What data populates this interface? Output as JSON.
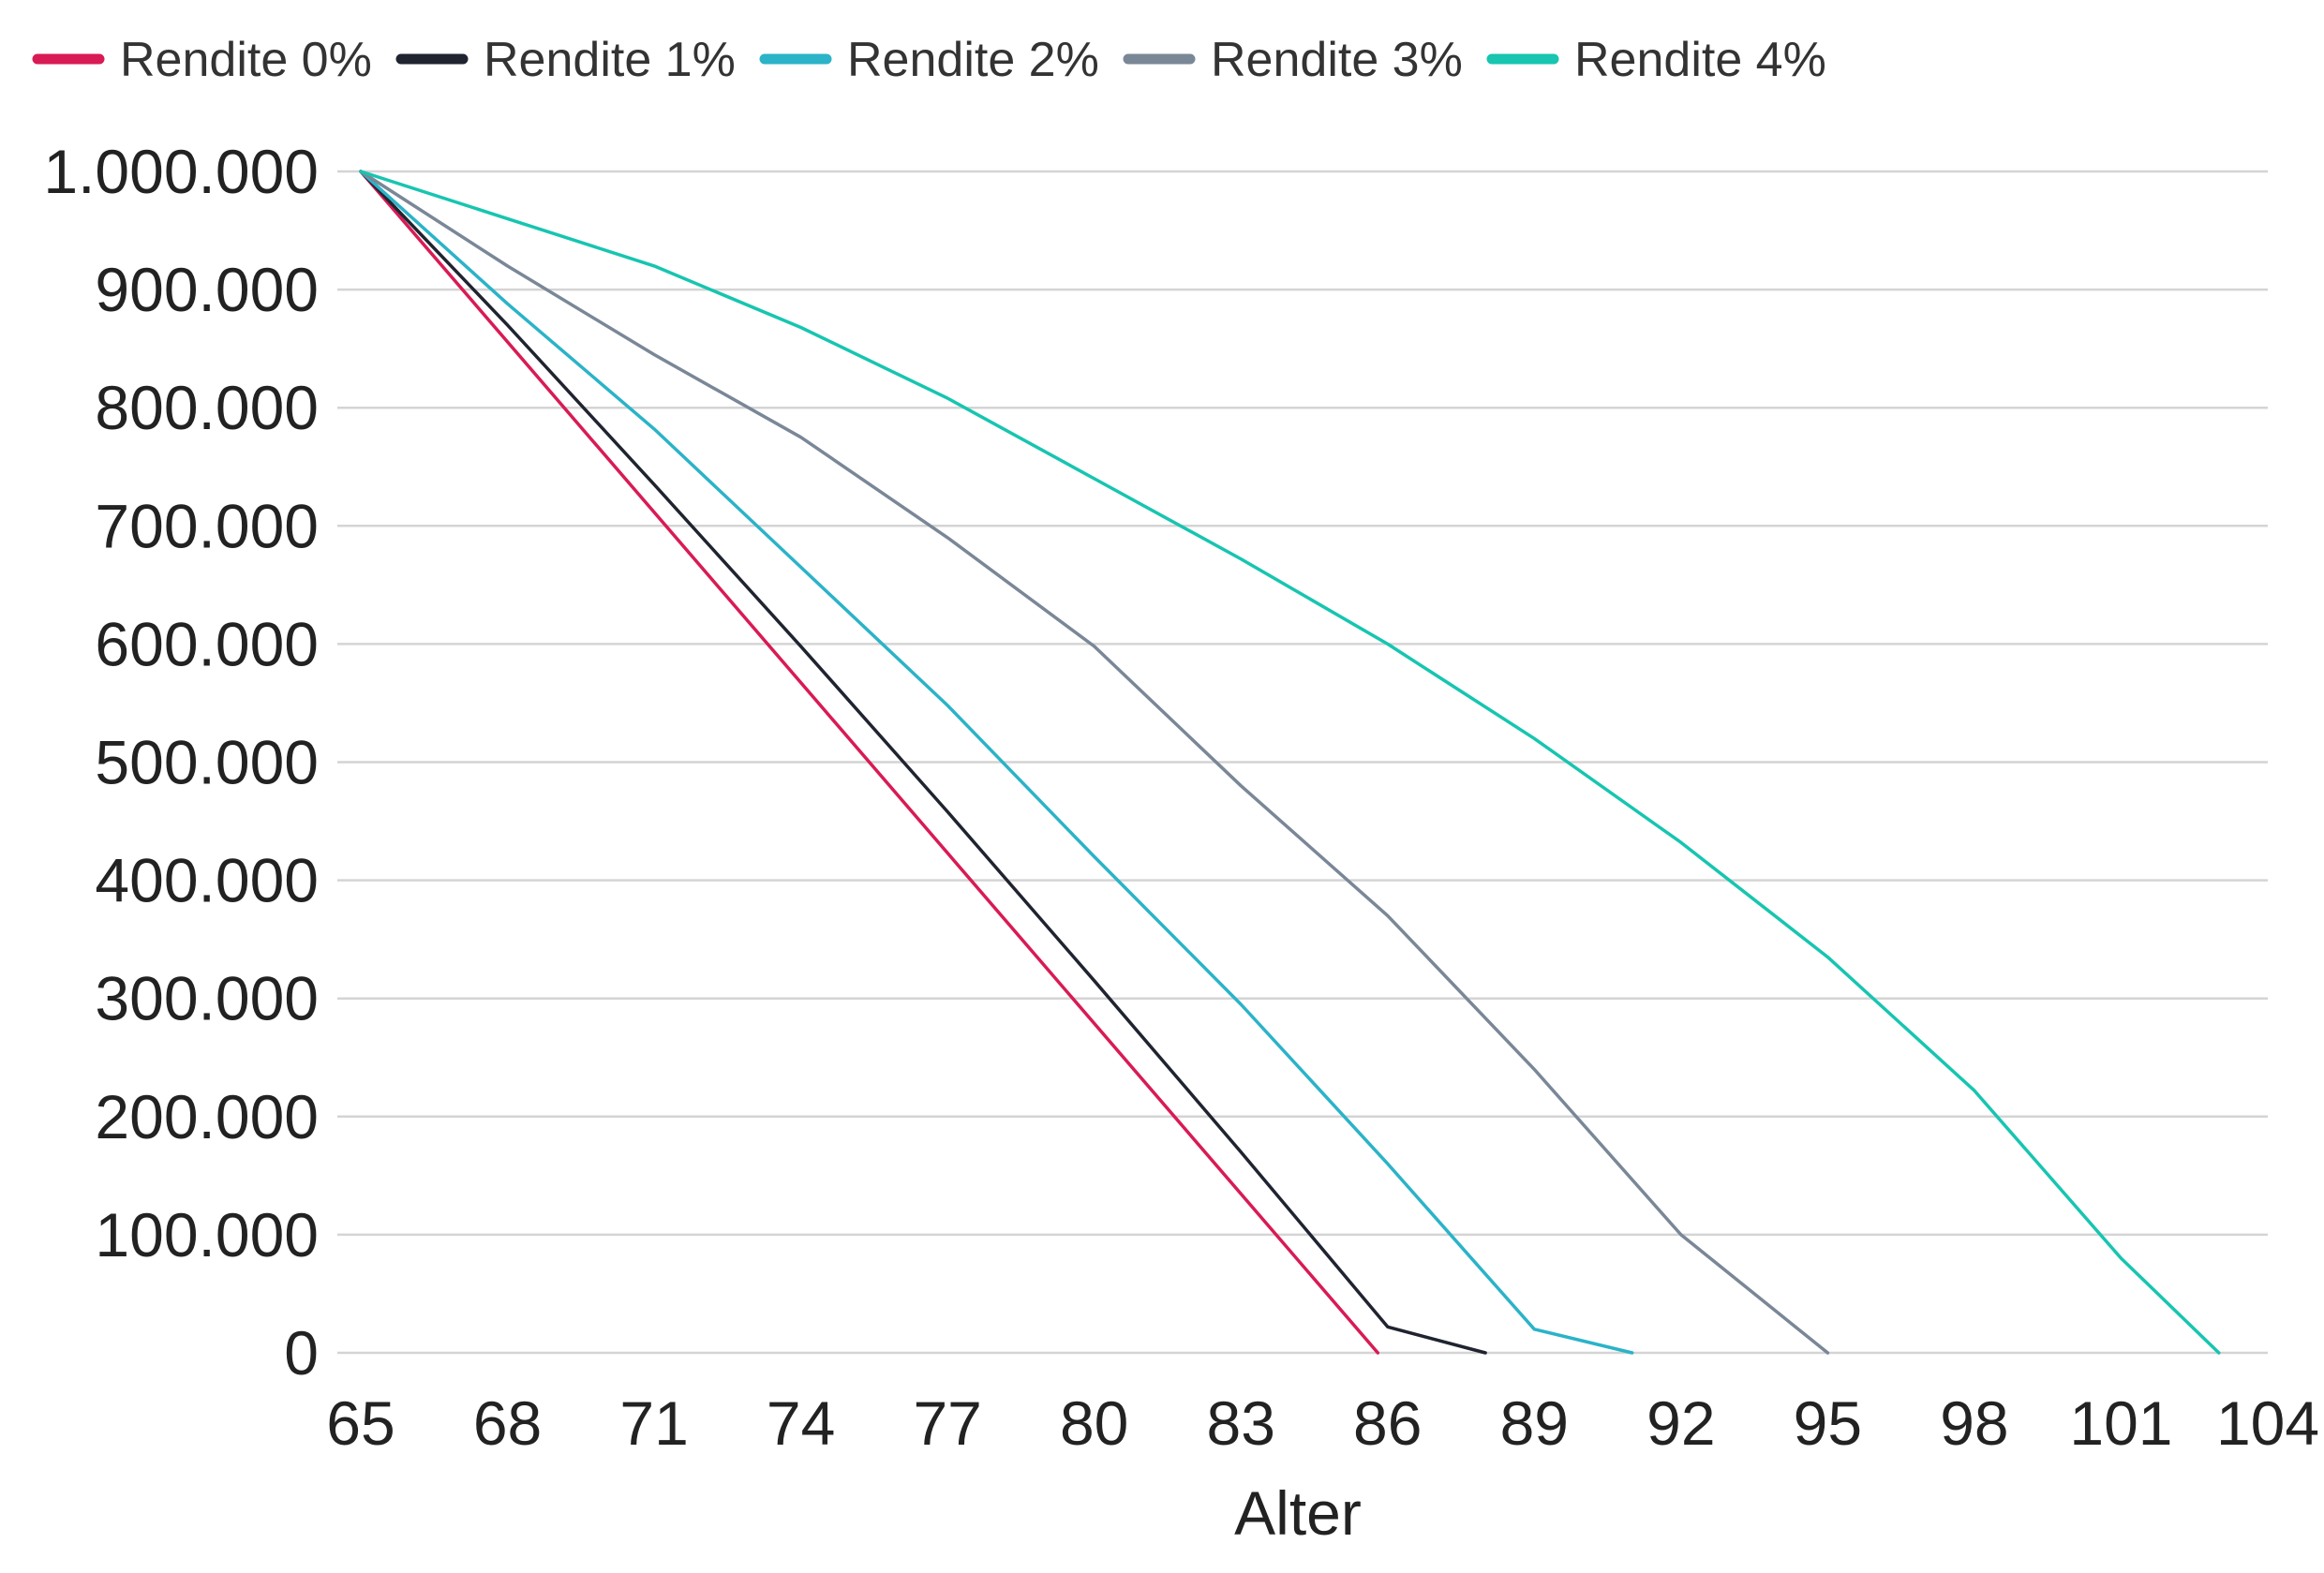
{
  "chart_data": {
    "type": "line",
    "title": "",
    "xlabel": "Alter",
    "ylabel": "",
    "x_ticks": [
      65,
      68,
      71,
      74,
      77,
      80,
      83,
      86,
      89,
      92,
      95,
      98,
      101,
      104
    ],
    "y_ticks": [
      0,
      100000,
      200000,
      300000,
      400000,
      500000,
      600000,
      700000,
      800000,
      900000,
      1000000
    ],
    "y_tick_labels": [
      "0",
      "100.000",
      "200.000",
      "300.000",
      "400.000",
      "500.000",
      "600.000",
      "700.000",
      "800.000",
      "900.000",
      "1.000.000"
    ],
    "x_tick_labels": [
      "65",
      "68",
      "71",
      "74",
      "77",
      "80",
      "83",
      "86",
      "89",
      "92",
      "95",
      "98",
      "101",
      "104"
    ],
    "xlim": [
      65,
      104
    ],
    "ylim": [
      0,
      1000000
    ],
    "grid": true,
    "legend_position": "top",
    "series": [
      {
        "name": "Rendite 0%",
        "color": "#d81b55",
        "x": [
          65,
          85.8
        ],
        "y": [
          1000000,
          0
        ]
      },
      {
        "name": "Rendite 1%",
        "color": "#1f2430",
        "x": [
          65,
          68,
          71,
          74,
          77,
          80,
          83,
          86,
          88
        ],
        "y": [
          1000000,
          870000,
          735000,
          598000,
          458000,
          315000,
          170000,
          22000,
          0
        ]
      },
      {
        "name": "Rendite 2%",
        "color": "#2bb3c8",
        "x": [
          65,
          68,
          71,
          74,
          77,
          80,
          83,
          86,
          89,
          91
        ],
        "y": [
          1000000,
          888000,
          782000,
          665000,
          548000,
          420000,
          295000,
          160000,
          20000,
          0
        ]
      },
      {
        "name": "Rendite 3%",
        "color": "#7a8797",
        "x": [
          65,
          68,
          71,
          74,
          77,
          80,
          83,
          86,
          89,
          92,
          95
        ],
        "y": [
          1000000,
          920000,
          845000,
          775000,
          690000,
          598000,
          480000,
          370000,
          240000,
          100000,
          0
        ]
      },
      {
        "name": "Rendite 4%",
        "color": "#17c5b0",
        "x": [
          65,
          68,
          71,
          74,
          77,
          80,
          83,
          86,
          89,
          92,
          95,
          98,
          101,
          103
        ],
        "y": [
          1000000,
          960000,
          920000,
          868000,
          808000,
          740000,
          672000,
          600000,
          520000,
          432000,
          335000,
          222000,
          80000,
          0
        ]
      }
    ]
  }
}
